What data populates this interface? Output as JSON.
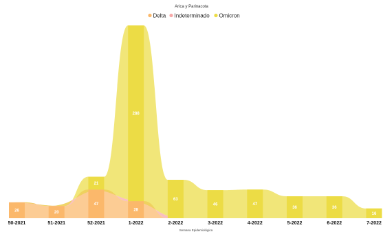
{
  "chart_data": {
    "type": "area",
    "title": "Arica y Parinacota",
    "xlabel": "Semana Epidemiológica",
    "ylabel": "",
    "legend_position": "top-center",
    "grid": false,
    "categories": [
      "50-2021",
      "51-2021",
      "52-2021",
      "1-2022",
      "2-2022",
      "3-2022",
      "4-2022",
      "5-2022",
      "6-2022",
      "7-2022"
    ],
    "series": [
      {
        "name": "Delta",
        "color": "#fbb86b",
        "values": [
          26,
          20,
          47,
          28,
          0,
          0,
          0,
          0,
          0,
          0
        ]
      },
      {
        "name": "Indeterminado",
        "color": "#f7a8a8",
        "values": [
          0,
          0,
          0,
          0,
          0,
          0,
          0,
          0,
          0,
          0
        ]
      },
      {
        "name": "Omicron",
        "color": "#ecdc45",
        "values": [
          0,
          0,
          21,
          288,
          63,
          46,
          47,
          36,
          36,
          16
        ]
      }
    ]
  }
}
